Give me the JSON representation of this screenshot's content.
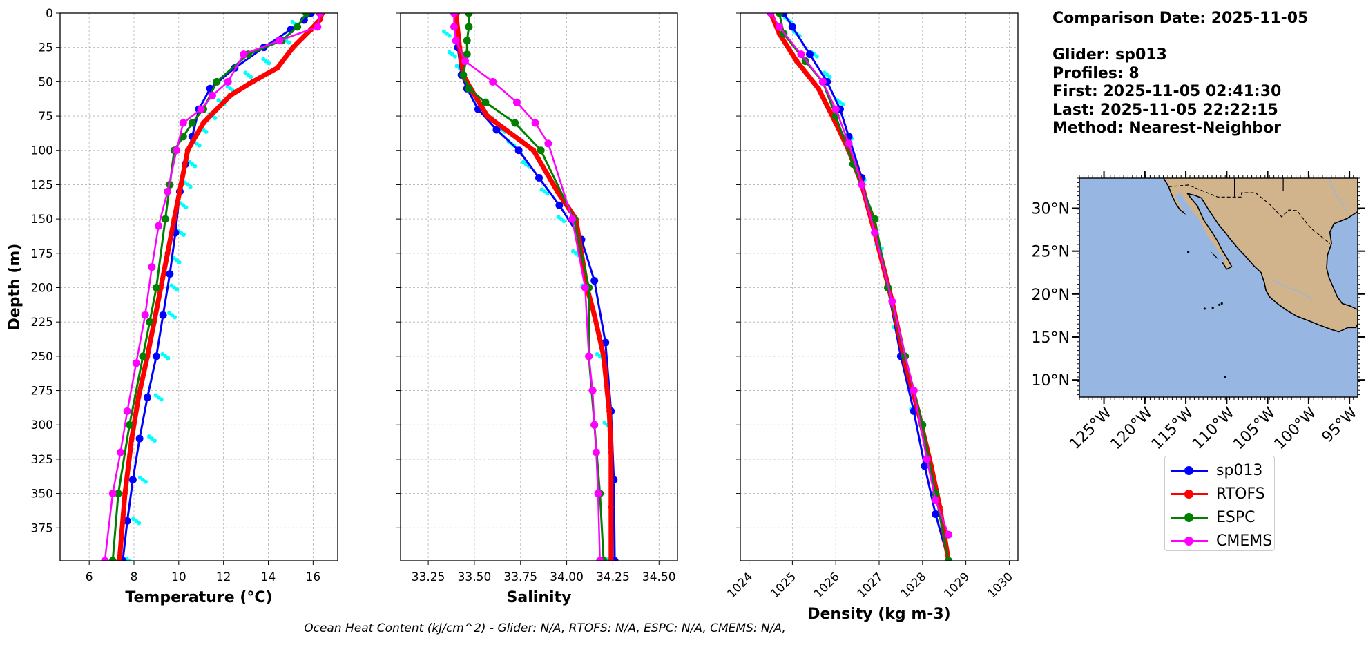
{
  "info": {
    "comparison": "Comparison Date: 2025-11-05",
    "glider": "Glider: sp013",
    "profiles": "Profiles: 8",
    "first": "First: 2025-11-05 02:41:30",
    "last": "Last: 2025-11-05 22:22:15",
    "method": "Method: Nearest-Neighbor"
  },
  "footer": "Ocean Heat Content (kJ/cm^2) - Glider: N/A,  RTOFS: N/A,  ESPC: N/A,  CMEMS: N/A,",
  "colors": {
    "sp013": "#0000ff",
    "RTOFS": "#ff0000",
    "ESPC": "#008000",
    "CMEMS": "#ff00ff",
    "raw": "#00ffff",
    "ocean": "#97b6e1",
    "land": "#d2b48c"
  },
  "legend": [
    {
      "name": "sp013",
      "color": "#0000ff"
    },
    {
      "name": "RTOFS",
      "color": "#ff0000"
    },
    {
      "name": "ESPC",
      "color": "#008000"
    },
    {
      "name": "CMEMS",
      "color": "#ff00ff"
    }
  ],
  "chart_data": [
    {
      "type": "line",
      "xlabel": "Temperature (°C)",
      "ylabel": "Depth (m)",
      "xlim": [
        4.7,
        17.1
      ],
      "ylim": [
        399,
        0
      ],
      "grid": true,
      "xticks": [
        "6",
        "8",
        "10",
        "12",
        "14",
        "16"
      ],
      "yticks": [
        "0",
        "25",
        "50",
        "75",
        "100",
        "125",
        "150",
        "175",
        "200",
        "225",
        "250",
        "275",
        "300",
        "325",
        "350",
        "375"
      ],
      "series": [
        {
          "name": "sp013",
          "x": [
            15.9,
            15.6,
            15.0,
            13.8,
            12.5,
            11.4,
            10.9,
            10.6,
            10.3,
            10.05,
            9.85,
            9.6,
            9.3,
            9.0,
            8.6,
            8.25,
            7.95,
            7.7,
            7.5
          ],
          "y": [
            0,
            5,
            12,
            25,
            40,
            55,
            70,
            90,
            110,
            130,
            160,
            190,
            220,
            250,
            280,
            310,
            340,
            370,
            399
          ]
        },
        {
          "name": "RTOFS",
          "x": [
            16.4,
            16.3,
            15.9,
            15.1,
            14.4,
            13.3,
            12.3,
            11.1,
            10.4,
            10.1,
            9.8,
            9.5,
            9.2,
            8.9,
            8.6,
            8.2,
            7.9,
            7.6,
            7.35
          ],
          "y": [
            0,
            5,
            12,
            25,
            40,
            50,
            60,
            80,
            100,
            125,
            150,
            175,
            200,
            225,
            250,
            280,
            310,
            350,
            399
          ]
        },
        {
          "name": "ESPC",
          "x": [
            15.7,
            15.3,
            14.6,
            13.1,
            11.7,
            11.1,
            10.6,
            10.2,
            9.8,
            9.6,
            9.4,
            9.0,
            8.7,
            8.4,
            7.8,
            7.3,
            7.05
          ],
          "y": [
            0,
            10,
            20,
            30,
            50,
            70,
            80,
            90,
            100,
            125,
            150,
            200,
            225,
            250,
            300,
            350,
            399
          ]
        },
        {
          "name": "CMEMS",
          "x": [
            16.3,
            16.2,
            14.5,
            12.9,
            12.2,
            11.5,
            11.0,
            10.2,
            9.9,
            9.5,
            9.1,
            8.8,
            8.5,
            8.1,
            7.7,
            7.4,
            7.05,
            6.7
          ],
          "y": [
            0,
            10,
            20,
            30,
            50,
            60,
            70,
            80,
            100,
            130,
            155,
            185,
            220,
            255,
            290,
            320,
            350,
            399
          ]
        },
        {
          "name": "Glider raw",
          "scatter": true,
          "x": [
            15.2,
            14.8,
            13.9,
            13.1,
            12.3,
            11.9,
            11.5,
            11.1,
            10.8,
            10.6,
            10.4,
            10.2,
            10.1,
            9.9,
            9.8,
            9.7,
            9.4,
            9.1,
            8.8,
            8.4,
            8.1,
            7.8
          ],
          "y": [
            8,
            20,
            35,
            45,
            55,
            65,
            75,
            85,
            95,
            110,
            125,
            140,
            160,
            180,
            200,
            220,
            250,
            280,
            310,
            340,
            370,
            399
          ]
        }
      ]
    },
    {
      "type": "line",
      "xlabel": "Salinity",
      "xlim": [
        33.1,
        34.6
      ],
      "ylim": [
        399,
        0
      ],
      "grid": true,
      "xticks": [
        "33.25",
        "33.50",
        "33.75",
        "34.00",
        "34.25",
        "34.50"
      ],
      "series": [
        {
          "name": "sp013",
          "x": [
            33.4,
            33.41,
            33.43,
            33.46,
            33.52,
            33.62,
            33.74,
            33.85,
            33.96,
            34.08,
            34.15,
            34.21,
            34.24,
            34.255,
            34.26
          ],
          "y": [
            0,
            25,
            45,
            55,
            70,
            85,
            100,
            120,
            140,
            165,
            195,
            240,
            290,
            340,
            399
          ]
        },
        {
          "name": "RTOFS",
          "x": [
            33.4,
            33.42,
            33.44,
            33.48,
            33.57,
            33.82,
            33.95,
            34.05,
            34.11,
            34.15,
            34.2,
            34.23,
            34.24,
            34.24,
            34.24
          ],
          "y": [
            0,
            25,
            45,
            55,
            75,
            100,
            130,
            150,
            200,
            220,
            250,
            290,
            320,
            360,
            399
          ]
        },
        {
          "name": "ESPC",
          "x": [
            33.47,
            33.47,
            33.46,
            33.46,
            33.44,
            33.47,
            33.56,
            33.72,
            33.86,
            34.04,
            34.12,
            34.12,
            34.15,
            34.18,
            34.2
          ],
          "y": [
            0,
            10,
            20,
            30,
            45,
            55,
            65,
            80,
            100,
            150,
            200,
            250,
            300,
            350,
            399
          ]
        },
        {
          "name": "CMEMS",
          "x": [
            33.39,
            33.39,
            33.4,
            33.45,
            33.6,
            33.73,
            33.83,
            33.9,
            34.03,
            34.1,
            34.12,
            34.14,
            34.15,
            34.16,
            34.17,
            34.18
          ],
          "y": [
            0,
            10,
            20,
            35,
            50,
            65,
            80,
            95,
            150,
            200,
            250,
            275,
            300,
            320,
            350,
            399
          ]
        },
        {
          "name": "Glider raw",
          "scatter": true,
          "x": [
            33.35,
            33.38,
            33.42,
            33.47,
            33.52,
            33.58,
            33.65,
            33.7,
            33.78,
            33.88,
            33.97,
            34.05,
            34.1,
            34.18,
            34.22,
            34.24
          ],
          "y": [
            15,
            30,
            40,
            55,
            65,
            75,
            85,
            95,
            110,
            130,
            150,
            175,
            200,
            250,
            300,
            399
          ]
        }
      ]
    },
    {
      "type": "line",
      "xlabel": "Density (kg m-3)",
      "xlim": [
        1023.8,
        1030.2
      ],
      "ylim": [
        399,
        0
      ],
      "grid": true,
      "xticks": [
        "1024",
        "1025",
        "1026",
        "1027",
        "1028",
        "1029",
        "1030"
      ],
      "series": [
        {
          "name": "sp013",
          "x": [
            1024.8,
            1025.0,
            1025.4,
            1025.8,
            1026.1,
            1026.3,
            1026.6,
            1026.9,
            1027.2,
            1027.5,
            1027.8,
            1028.05,
            1028.3,
            1028.6
          ],
          "y": [
            0,
            10,
            30,
            50,
            70,
            90,
            120,
            160,
            200,
            250,
            290,
            330,
            365,
            399
          ]
        },
        {
          "name": "RTOFS",
          "x": [
            1024.5,
            1024.7,
            1025.1,
            1025.6,
            1026.0,
            1026.3,
            1026.6,
            1026.9,
            1027.3,
            1027.6,
            1027.9,
            1028.2,
            1028.4,
            1028.6
          ],
          "y": [
            0,
            15,
            35,
            55,
            80,
            100,
            125,
            160,
            210,
            255,
            290,
            330,
            360,
            399
          ]
        },
        {
          "name": "ESPC",
          "x": [
            1024.7,
            1024.8,
            1025.3,
            1025.7,
            1026.0,
            1026.4,
            1026.9,
            1027.2,
            1027.6,
            1028.0,
            1028.3,
            1028.6
          ],
          "y": [
            0,
            15,
            35,
            50,
            75,
            110,
            150,
            200,
            250,
            300,
            350,
            399
          ]
        },
        {
          "name": "CMEMS",
          "x": [
            1024.5,
            1024.7,
            1025.2,
            1025.7,
            1026.0,
            1026.3,
            1026.6,
            1026.9,
            1027.3,
            1027.8,
            1028.1,
            1028.3,
            1028.6
          ],
          "y": [
            0,
            10,
            30,
            50,
            70,
            95,
            125,
            160,
            210,
            275,
            325,
            355,
            380
          ]
        },
        {
          "name": "Glider raw",
          "scatter": true,
          "x": [
            1024.9,
            1025.1,
            1025.5,
            1025.8,
            1026.1,
            1026.3,
            1026.6,
            1027.0,
            1027.4,
            1027.8
          ],
          "y": [
            5,
            15,
            30,
            45,
            65,
            90,
            120,
            170,
            230,
            290
          ]
        }
      ]
    }
  ],
  "map": {
    "lon_labels": [
      "125°W",
      "120°W",
      "115°W",
      "110°W",
      "105°W",
      "100°W",
      "95°W"
    ],
    "lat_labels": [
      "30°N",
      "25°N",
      "20°N",
      "15°N",
      "10°N"
    ],
    "lon_range": [
      -128,
      -94
    ],
    "lat_range": [
      8,
      33.5
    ]
  }
}
